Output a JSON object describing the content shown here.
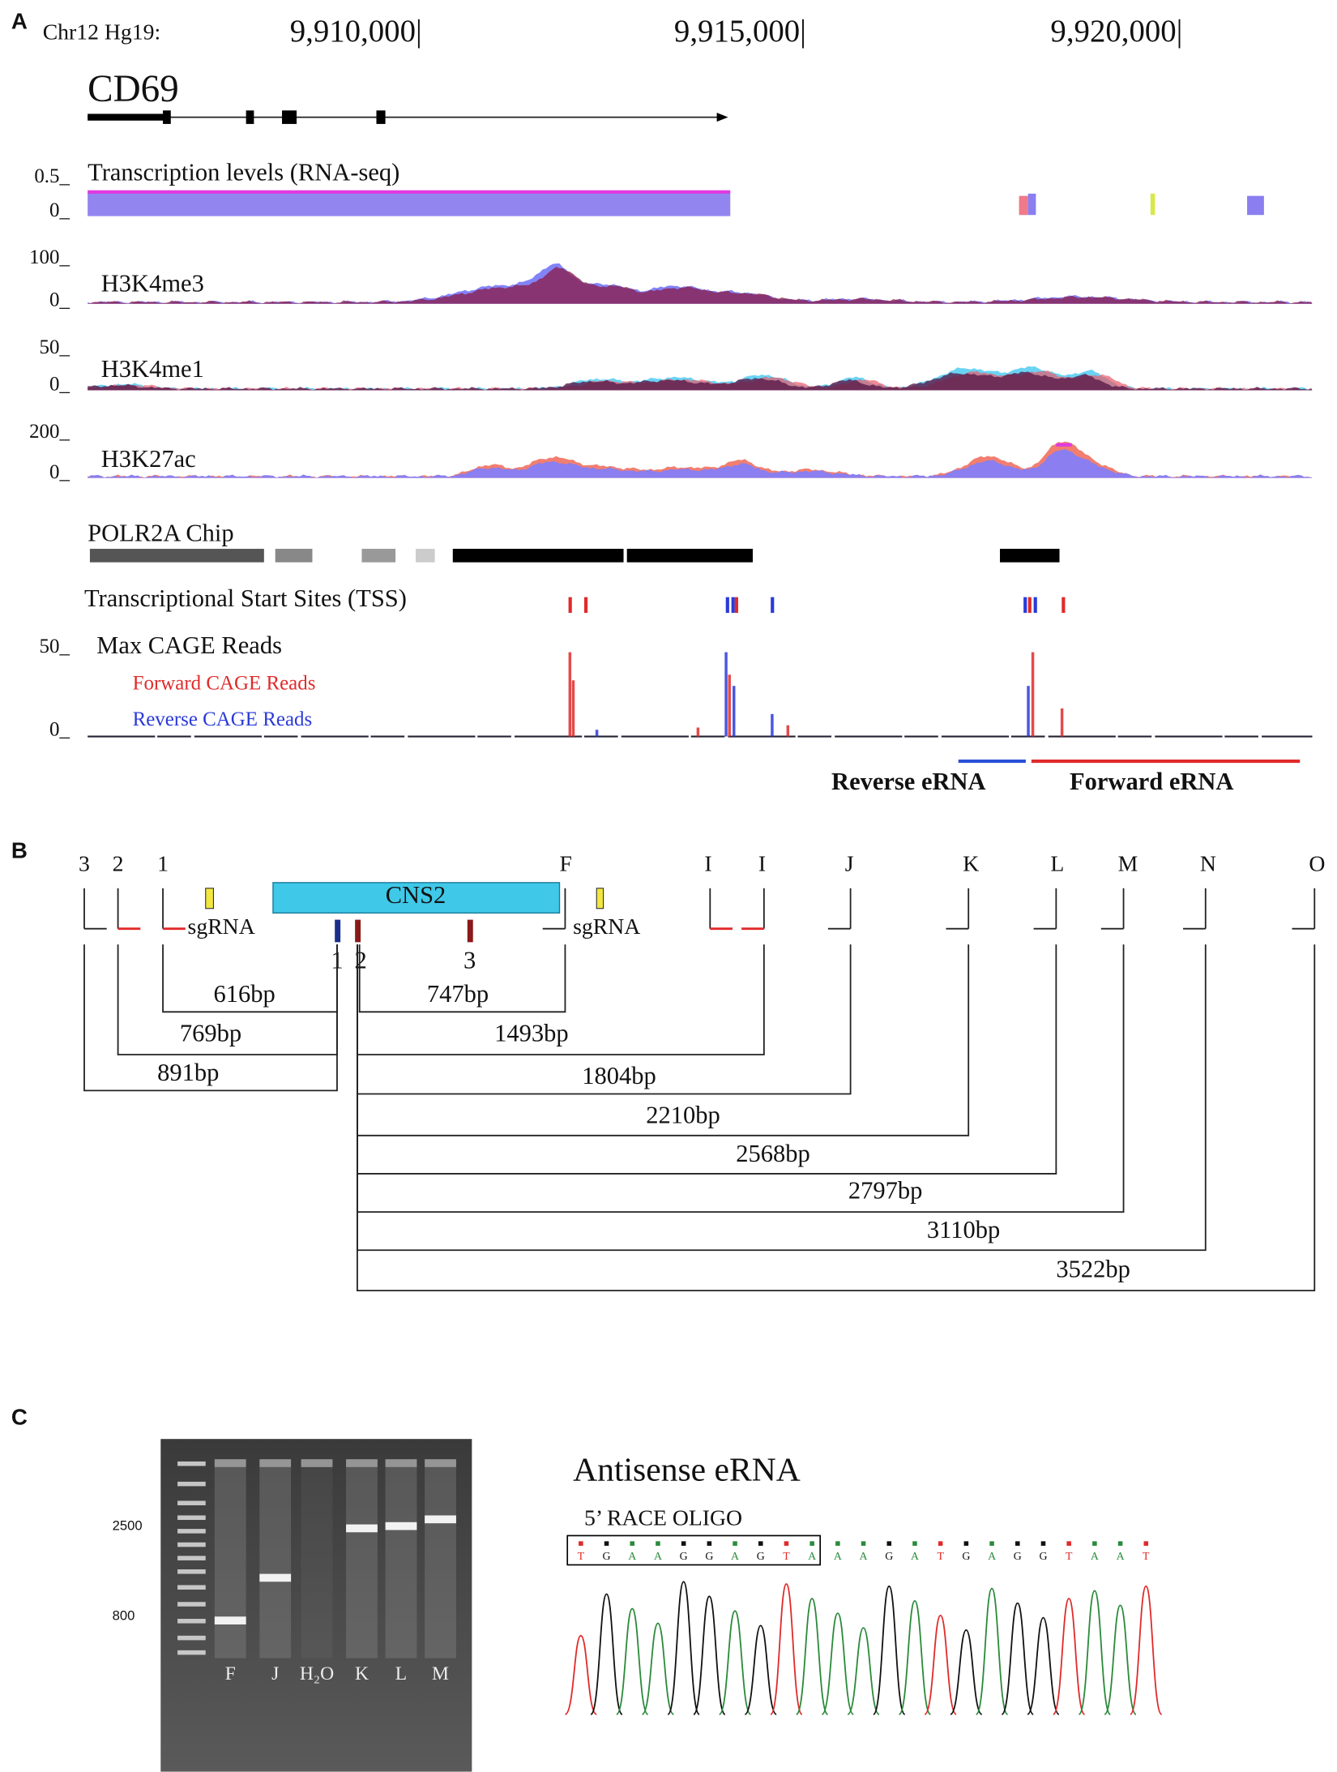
{
  "panel_a": {
    "label": "A",
    "assembly": "Chr12 Hg19:",
    "coordinates": [
      "9,910,000|",
      "9,915,000|",
      "9,920,000|"
    ],
    "gene": "CD69",
    "tracks": [
      {
        "scale_top": "0.5_",
        "scale_bottom": "0_",
        "label": "Transcription levels (RNA-seq)"
      },
      {
        "scale_top": "100_",
        "scale_bottom": "0_",
        "label": "H3K4me3"
      },
      {
        "scale_top": "50_",
        "scale_bottom": "0_",
        "label": "H3K4me1"
      },
      {
        "scale_top": "200_",
        "scale_bottom": "0_",
        "label": "H3K27ac"
      }
    ],
    "polr2a": "POLR2A Chip",
    "tss": "Transcriptional Start Sites (TSS)",
    "cage": {
      "scale_top": "50_",
      "label": "Max CAGE Reads",
      "forward": "Forward CAGE Reads",
      "reverse": "Reverse CAGE Reads",
      "scale_bottom": "0_"
    },
    "erna": [
      "Reverse eRNA",
      "Forward eRNA"
    ]
  },
  "panel_b": {
    "label": "B",
    "primers": [
      "3",
      "2",
      "1",
      "F",
      "I",
      "I",
      "J",
      "K",
      "L",
      "M",
      "N",
      "O"
    ],
    "sgrna": [
      "sgRNA",
      "sgRNA"
    ],
    "cns": "CNS2",
    "sites": [
      "1",
      "2",
      "3"
    ],
    "distances": [
      "616bp",
      "747bp",
      "769bp",
      "1493bp",
      "891bp",
      "1804bp",
      "2210bp",
      "2568bp",
      "2797bp",
      "3110bp",
      "3522bp"
    ]
  },
  "panel_c": {
    "label": "C",
    "ladder": [
      "2500",
      "800"
    ],
    "lanes": [
      "F",
      "J",
      "H₂O",
      "K",
      "L",
      "M"
    ],
    "title": "Antisense eRNA",
    "oligo": "5’ RACE OLIGO",
    "boxed_bases": [
      "T",
      "G",
      "A",
      "A",
      "G",
      "G",
      "A",
      "G",
      "T",
      "A"
    ],
    "bases": [
      "A",
      "A",
      "G",
      "A",
      "T",
      "G",
      "A",
      "G",
      "G",
      "T",
      "A",
      "A",
      "T"
    ]
  }
}
